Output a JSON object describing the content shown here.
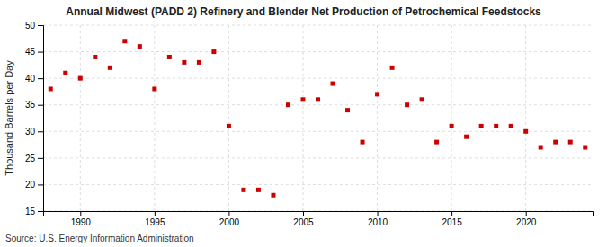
{
  "chart_data": {
    "type": "scatter",
    "title": "Annual Midwest (PADD 2) Refinery and Blender Net Production of Petrochemical Feedstocks",
    "ylabel": "Thousand Barrels per Day",
    "source": "Source: U.S. Energy Information Administration",
    "color": "#cc0000",
    "marker": "square",
    "grid": true,
    "xlim": [
      1987.5,
      2024.5
    ],
    "ylim": [
      15,
      50
    ],
    "xticks": [
      1990,
      1995,
      2000,
      2005,
      2010,
      2015,
      2020
    ],
    "yticks": [
      15,
      20,
      25,
      30,
      35,
      40,
      45,
      50
    ],
    "x": [
      1988,
      1989,
      1990,
      1991,
      1992,
      1993,
      1994,
      1995,
      1996,
      1997,
      1998,
      1999,
      2000,
      2001,
      2002,
      2003,
      2004,
      2005,
      2006,
      2007,
      2008,
      2009,
      2010,
      2011,
      2012,
      2013,
      2014,
      2015,
      2016,
      2017,
      2018,
      2019,
      2020,
      2021,
      2022,
      2023,
      2024
    ],
    "values": [
      38,
      41,
      40,
      44,
      42,
      47,
      46,
      38,
      44,
      43,
      43,
      45,
      31,
      19,
      19,
      18,
      35,
      36,
      36,
      39,
      34,
      28,
      37,
      42,
      35,
      36,
      28,
      31,
      29,
      31,
      31,
      31,
      30,
      27,
      28,
      28,
      27
    ]
  }
}
